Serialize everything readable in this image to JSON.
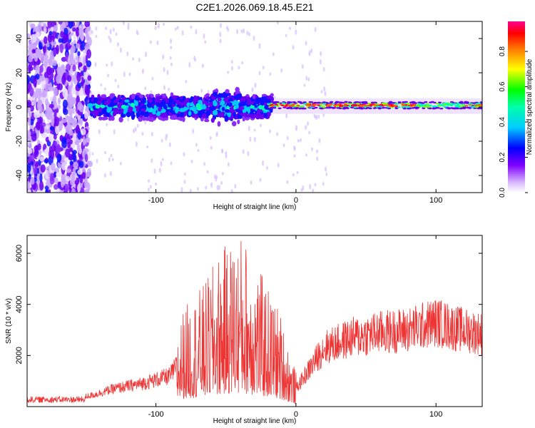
{
  "title": "C2E1.2026.069.18.45.E21",
  "chart_data": [
    {
      "type": "heatmap",
      "name": "spectrogram",
      "xlabel": "Height of straight line (km)",
      "ylabel": "Frequency (Hz)",
      "xlim": [
        -192,
        133
      ],
      "ylim": [
        -50,
        50
      ],
      "xticks": [
        -100,
        0,
        100
      ],
      "yticks": [
        -40,
        -20,
        0,
        20,
        40
      ],
      "colorbar": {
        "label": "Normalized spectral amplitude",
        "range": [
          0,
          0.97
        ],
        "ticks": [
          0.0,
          0.2,
          0.4,
          0.6,
          0.8
        ],
        "colors": [
          "#ffffff",
          "#e0c0ff",
          "#8000ff",
          "#0000ff",
          "#00ffff",
          "#00ff00",
          "#ffff00",
          "#ff8000",
          "#ff0000",
          "#ff00a0"
        ]
      },
      "description_bands": [
        {
          "x_start": -192,
          "x_end": -147,
          "freq_half_width": 50,
          "amplitude": 0.15
        },
        {
          "x_start": -147,
          "x_end": -20,
          "freq_half_width": 9,
          "amplitude": 0.35
        },
        {
          "x_start": -20,
          "x_end": 133,
          "freq_center": 1,
          "freq_half_width": 2,
          "amplitude": 0.9
        }
      ]
    },
    {
      "type": "line",
      "name": "snr",
      "xlabel": "Height of straight line (km)",
      "ylabel": "SNR (10 * v/v)",
      "xlim": [
        -192,
        133
      ],
      "ylim": [
        0,
        6700
      ],
      "xticks": [
        -100,
        0,
        100
      ],
      "yticks": [
        2000,
        4000,
        6000
      ],
      "color": "#ee3333",
      "envelope": {
        "x": [
          -192,
          -160,
          -145,
          -130,
          -110,
          -90,
          -80,
          -65,
          -55,
          -45,
          -38,
          -30,
          -20,
          -12,
          -5,
          0,
          10,
          20,
          40,
          60,
          80,
          100,
          115,
          133
        ],
        "y": [
          250,
          300,
          450,
          700,
          900,
          1200,
          2000,
          2500,
          3100,
          3400,
          3500,
          3000,
          2400,
          2000,
          1200,
          700,
          1500,
          2300,
          2700,
          2900,
          3000,
          3300,
          3050,
          2850
        ]
      }
    }
  ]
}
